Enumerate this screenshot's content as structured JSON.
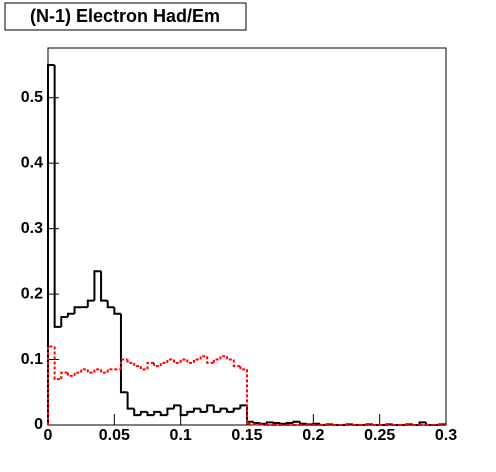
{
  "chart_data": {
    "type": "histogram",
    "title": "(N-1) Electron Had/Em",
    "bins": [
      0,
      0.005,
      0.01,
      0.015,
      0.02,
      0.025,
      0.03,
      0.035,
      0.04,
      0.045,
      0.05,
      0.055,
      0.06,
      0.065,
      0.07,
      0.075,
      0.08,
      0.085,
      0.09,
      0.095,
      0.1,
      0.105,
      0.11,
      0.115,
      0.12,
      0.125,
      0.13,
      0.135,
      0.14,
      0.145,
      0.15,
      0.155,
      0.16,
      0.165,
      0.17,
      0.175,
      0.18,
      0.185,
      0.19,
      0.195,
      0.2,
      0.205,
      0.21,
      0.215,
      0.22,
      0.225,
      0.23,
      0.235,
      0.24,
      0.245,
      0.25,
      0.255,
      0.26,
      0.265,
      0.27,
      0.275,
      0.28,
      0.285,
      0.29,
      0.295,
      0.3
    ],
    "series": [
      {
        "color": "#000000",
        "dashed": false,
        "values": [
          0.55,
          0.15,
          0.165,
          0.17,
          0.18,
          0.18,
          0.19,
          0.235,
          0.19,
          0.18,
          0.17,
          0.05,
          0.025,
          0.015,
          0.02,
          0.015,
          0.02,
          0.015,
          0.025,
          0.03,
          0.015,
          0.02,
          0.025,
          0.02,
          0.03,
          0.02,
          0.025,
          0.02,
          0.025,
          0.03,
          0.005,
          0.003,
          0.002,
          0.004,
          0.003,
          0.002,
          0.003,
          0.005,
          0.002,
          0.001,
          0.002,
          0,
          0.001,
          0,
          0,
          0.001,
          0,
          0,
          0.001,
          0,
          0,
          0.001,
          0,
          0,
          0.001,
          0,
          0.004,
          0,
          0,
          0.001
        ]
      },
      {
        "color": "#ff0000",
        "dashed": true,
        "values": [
          0.12,
          0.07,
          0.08,
          0.075,
          0.08,
          0.085,
          0.08,
          0.085,
          0.08,
          0.085,
          0.085,
          0.1,
          0.095,
          0.09,
          0.085,
          0.095,
          0.09,
          0.095,
          0.1,
          0.095,
          0.1,
          0.095,
          0.1,
          0.105,
          0.095,
          0.1,
          0.105,
          0.1,
          0.09,
          0.085,
          0.002,
          0.001,
          0.001,
          0,
          0,
          0,
          0,
          0,
          0,
          0,
          0,
          0,
          0,
          0,
          0,
          0,
          0,
          0,
          0,
          0,
          0,
          0,
          0,
          0,
          0,
          0,
          0,
          0,
          0,
          0
        ]
      }
    ],
    "xlim": [
      0,
      0.3
    ],
    "ylim": [
      0,
      0.576
    ],
    "xticks": [
      0,
      0.05,
      0.1,
      0.15,
      0.2,
      0.25,
      0.3
    ],
    "yticks": [
      0,
      0.1,
      0.2,
      0.3,
      0.4,
      0.5
    ]
  }
}
